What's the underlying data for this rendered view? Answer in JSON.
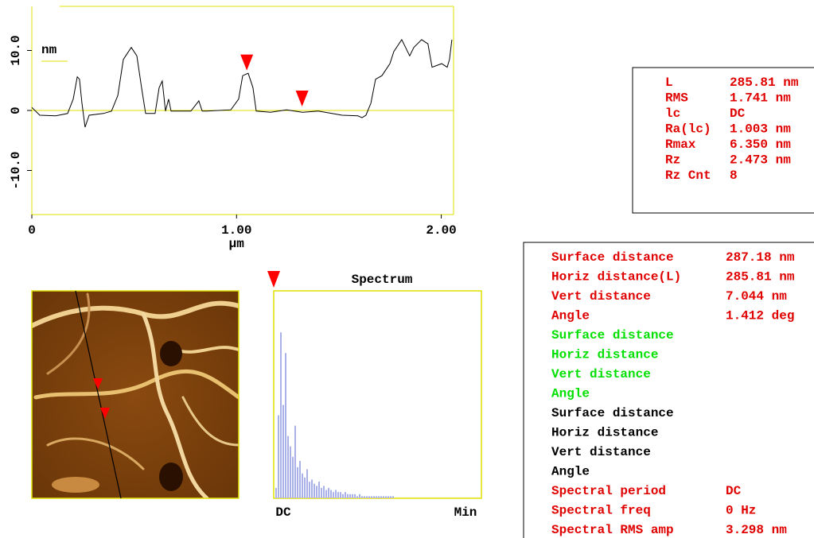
{
  "chart_data": [
    {
      "type": "line",
      "x_label": "µm",
      "legend_label": "nm",
      "color": "#000000",
      "axis_color": "#e0e000",
      "xlim": [
        0,
        2.06
      ],
      "xticks": [
        0,
        {
          "value": 1,
          "label": "1.00"
        },
        {
          "value": 2,
          "label": "2.00"
        }
      ],
      "ylim": [
        -17.35,
        17.35
      ],
      "yticks": [
        {
          "value": -10,
          "label": "-10.0"
        },
        0,
        {
          "value": 10,
          "label": "10.0"
        }
      ],
      "x": [
        0,
        0.039,
        0.117,
        0.175,
        0.202,
        0.222,
        0.233,
        0.245,
        0.26,
        0.28,
        0.35,
        0.389,
        0.42,
        0.447,
        0.486,
        0.513,
        0.536,
        0.556,
        0.602,
        0.622,
        0.637,
        0.653,
        0.668,
        0.68,
        0.777,
        0.816,
        0.832,
        0.855,
        0.972,
        1.01,
        1.03,
        1.057,
        1.08,
        1.096,
        1.166,
        1.244,
        1.321,
        1.399,
        1.516,
        1.593,
        1.613,
        1.632,
        1.656,
        1.679,
        1.71,
        1.749,
        1.768,
        1.807,
        1.846,
        1.866,
        1.904,
        1.935,
        1.955,
        2.002,
        2.029,
        2.04,
        2.052
      ],
      "values": [
        0.5,
        -0.8,
        -0.9,
        -0.5,
        1.9,
        5.6,
        5.2,
        1.2,
        -2.8,
        -0.8,
        -0.5,
        -0.1,
        2.5,
        8.5,
        10.5,
        9.1,
        3.8,
        -0.5,
        -0.5,
        3.8,
        4.9,
        -0.1,
        1.9,
        -0.1,
        -0.1,
        1.6,
        -0.1,
        -0.1,
        0.1,
        1.9,
        5.8,
        6.2,
        3.8,
        -0.1,
        -0.3,
        0.1,
        -0.3,
        -0.1,
        -0.8,
        -0.9,
        -1.2,
        -0.8,
        1.2,
        5.2,
        5.8,
        7.8,
        9.8,
        11.8,
        9.1,
        10.5,
        11.8,
        11.1,
        7.2,
        7.8,
        7.2,
        8.5,
        11.8
      ],
      "cursors": {
        "color": "#ff0000",
        "x": [
          1.05,
          1.32
        ],
        "y": [
          6.4,
          0.4
        ]
      }
    },
    {
      "type": "bar",
      "title": "Spectrum",
      "color": "#aab0e8",
      "axis_color": "#e0e000",
      "x_labels": [
        "DC",
        "Min"
      ],
      "ylim": [
        0,
        100
      ],
      "values": [
        5,
        40,
        80,
        45,
        70,
        30,
        25,
        20,
        35,
        15,
        18,
        12,
        10,
        14,
        8,
        9,
        7,
        6,
        8,
        5,
        6,
        4,
        5,
        4,
        3,
        4,
        3,
        3,
        2,
        3,
        2,
        2,
        2,
        2,
        1,
        2,
        1,
        1,
        1,
        1,
        1,
        1,
        1,
        1,
        1,
        1,
        1,
        1,
        1,
        1
      ]
    }
  ],
  "roughness_table": {
    "color": "#e00000",
    "rows": [
      [
        "L",
        "285.81 nm"
      ],
      [
        "RMS",
        "1.741 nm"
      ],
      [
        "lc",
        "DC"
      ],
      [
        "Ra(lc)",
        "1.003 nm"
      ],
      [
        "Rmax",
        "6.350 nm"
      ],
      [
        "Rz",
        "2.473 nm"
      ],
      [
        "Rz Cnt",
        "8"
      ]
    ]
  },
  "measurement_table": {
    "groups": [
      {
        "color": "#e00000",
        "rows": [
          [
            "Surface distance",
            "287.18 nm"
          ],
          [
            "Horiz distance(L)",
            "285.81 nm"
          ],
          [
            "Vert distance",
            "7.044 nm"
          ],
          [
            "Angle",
            "1.412 deg"
          ]
        ]
      },
      {
        "color": "#00e000",
        "rows": [
          [
            "Surface distance"
          ],
          [
            "Horiz distance"
          ],
          [
            "Vert distance"
          ],
          [
            "Angle"
          ]
        ]
      },
      {
        "color": "#000000",
        "rows": [
          [
            "Surface distance"
          ],
          [
            "Horiz distance"
          ],
          [
            "Vert distance"
          ],
          [
            "Angle"
          ]
        ]
      },
      {
        "color": "#e00000",
        "rows": [
          [
            "Spectral period",
            "DC"
          ],
          [
            "Spectral freq",
            "0 Hz"
          ],
          [
            "Spectral RMS amp",
            "3.298 nm"
          ]
        ]
      }
    ]
  }
}
